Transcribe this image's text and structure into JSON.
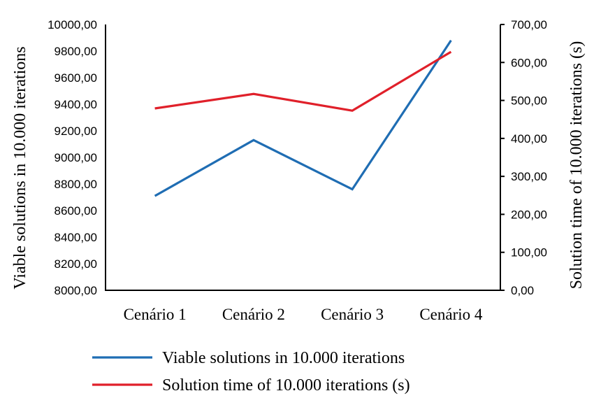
{
  "chart_data": {
    "type": "line",
    "title": "",
    "categories": [
      "Cenário 1",
      "Cenário 2",
      "Cenário 3",
      "Cenário 4"
    ],
    "series": [
      {
        "name": "Viable solutions in 10.000 iterations",
        "axis": "left",
        "color": "#1f6db3",
        "values": [
          8710,
          9130,
          8760,
          9880
        ]
      },
      {
        "name": "Solution time of 10.000 iterations (s)",
        "axis": "right",
        "color": "#e0202a",
        "values": [
          479,
          517,
          473,
          628
        ]
      }
    ],
    "ylabel": "Viable solutions in 10.000 iterations",
    "ylabel_right": "Solution time of 10.000 iterations (s)",
    "xlabel": "",
    "ylim": [
      8000,
      10000
    ],
    "ylim_right": [
      0,
      700
    ],
    "yticks": [
      "8000,00",
      "8200,00",
      "8400,00",
      "8600,00",
      "8800,00",
      "9000,00",
      "9200,00",
      "9400,00",
      "9600,00",
      "9800,00",
      "10000,00"
    ],
    "yticks_right": [
      "0,00",
      "100,00",
      "200,00",
      "300,00",
      "400,00",
      "500,00",
      "600,00",
      "700,00"
    ],
    "grid": false,
    "legend_position": "bottom"
  }
}
